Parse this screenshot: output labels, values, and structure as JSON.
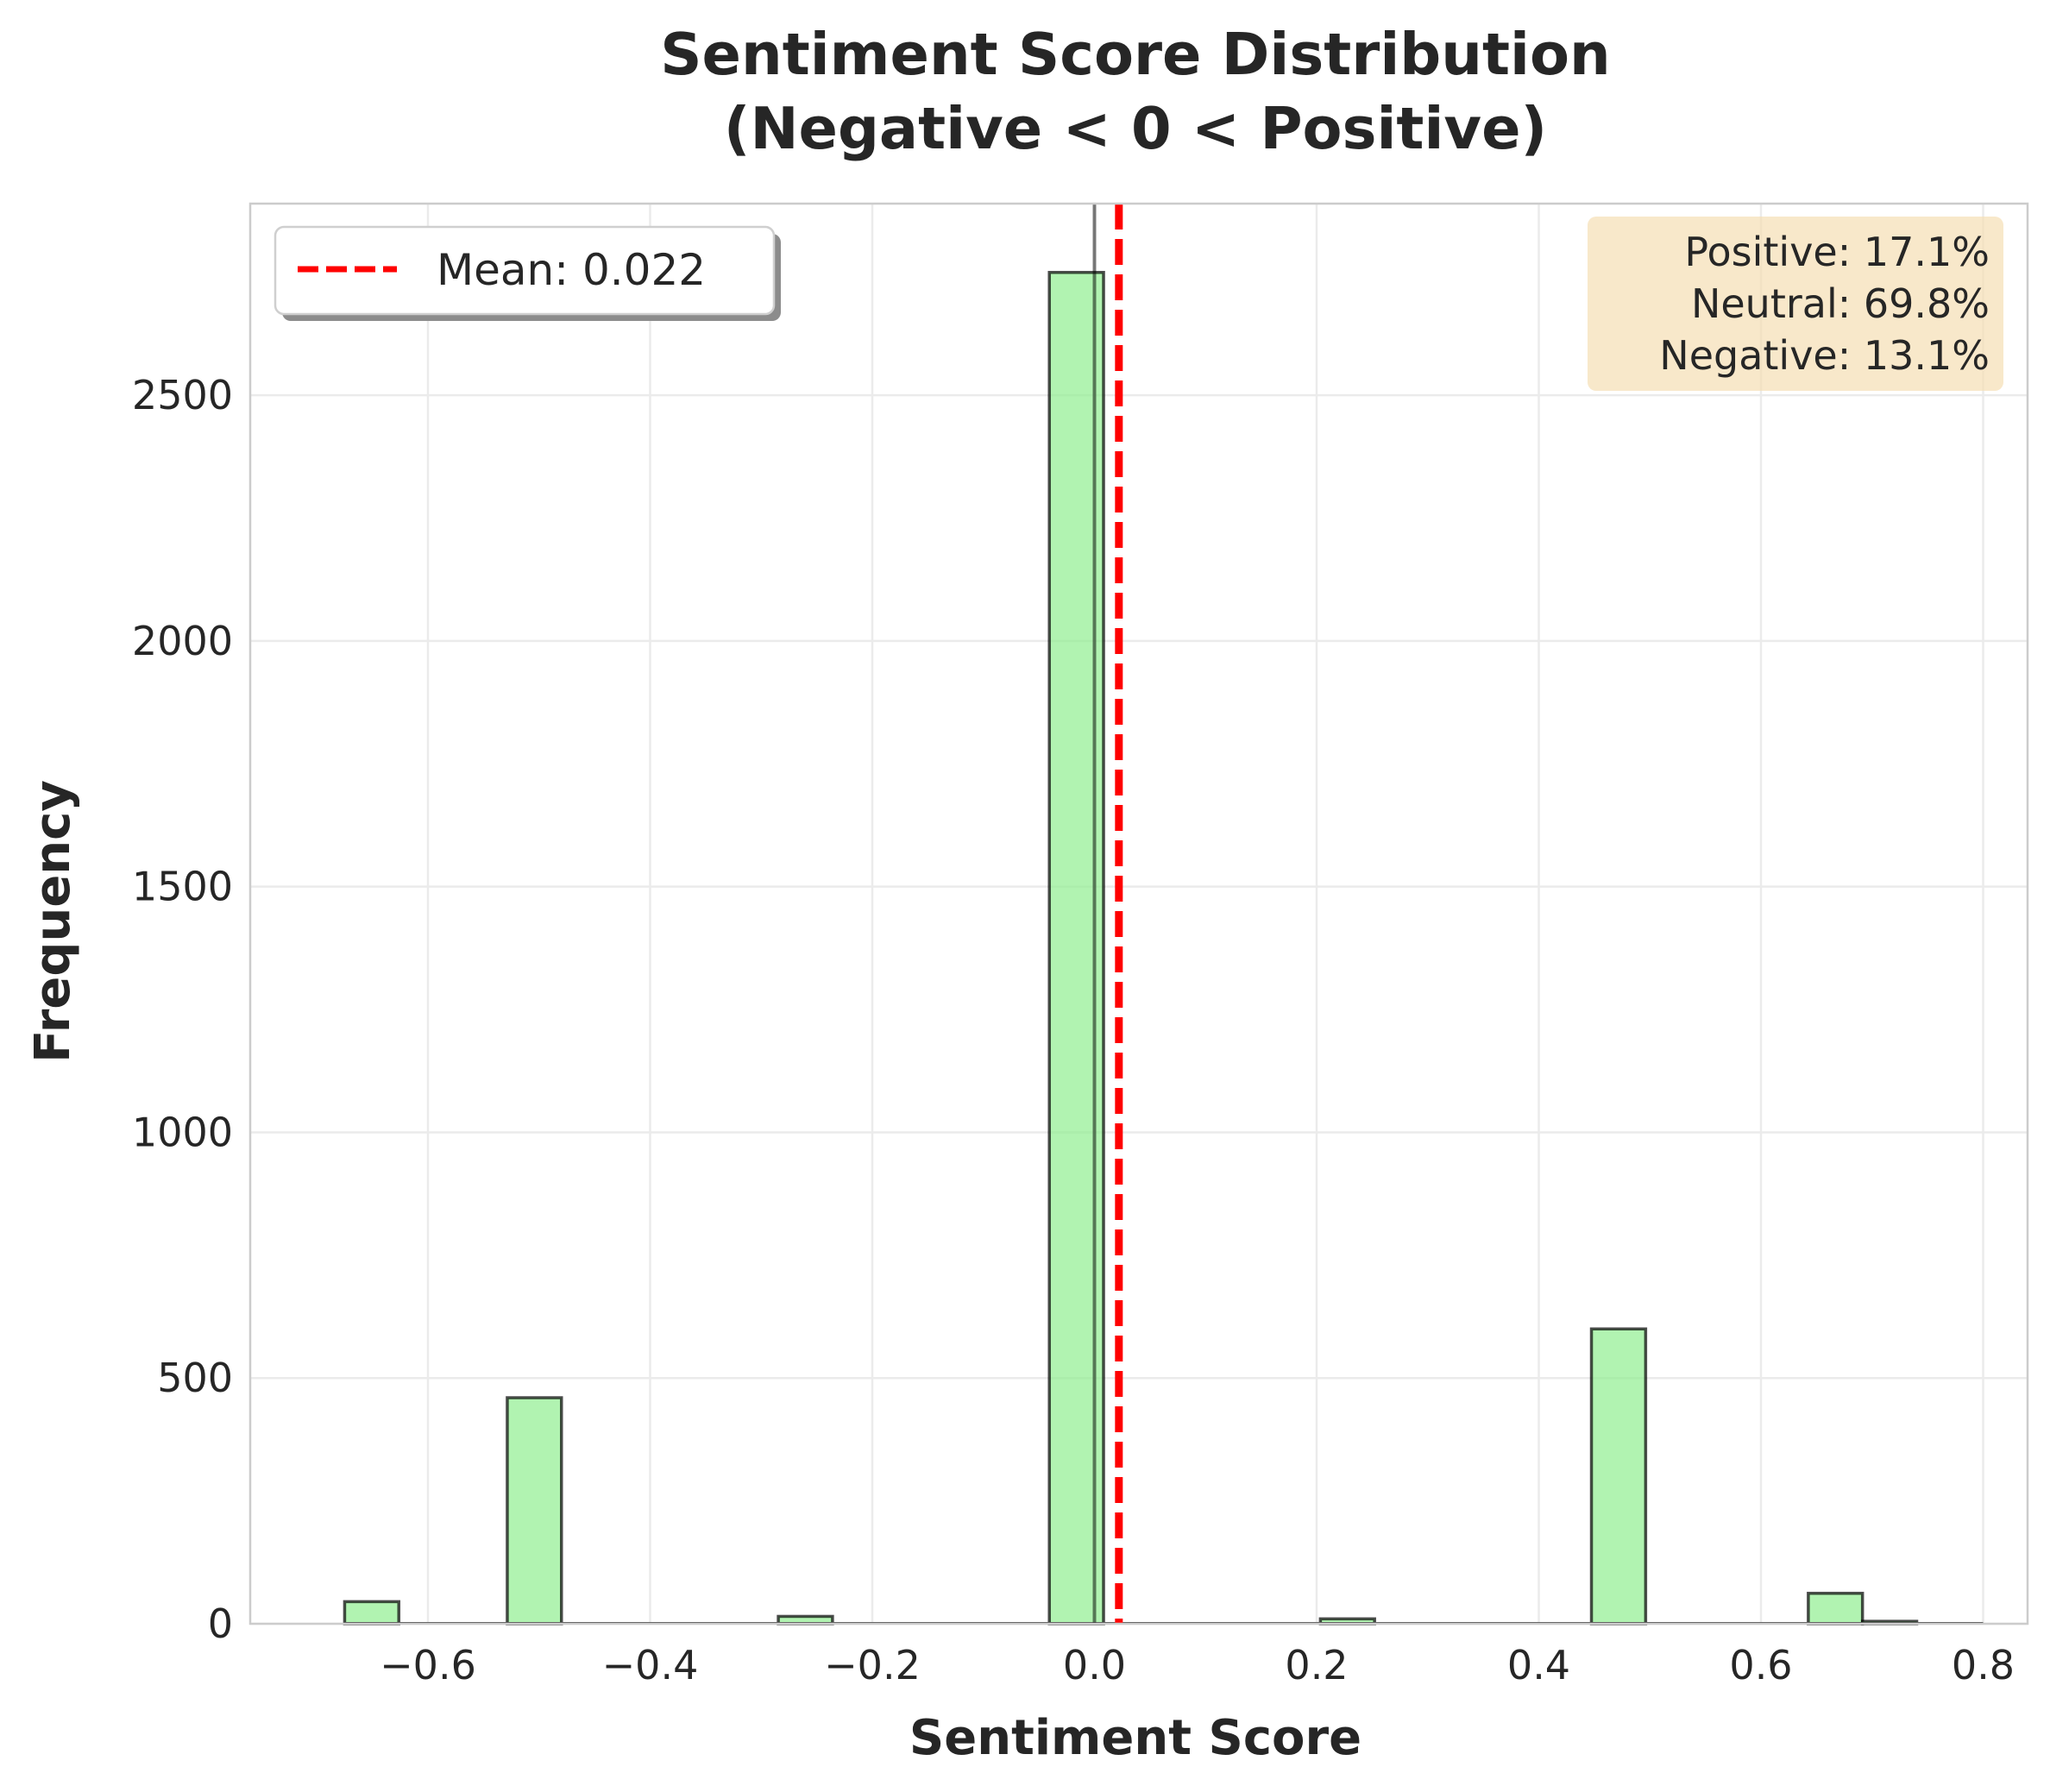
{
  "chart_data": {
    "type": "bar",
    "title": "Sentiment Score Distribution",
    "subtitle": "(Negative < 0 < Positive)",
    "xlabel": "Sentiment Score",
    "ylabel": "Frequency",
    "xlim": [
      -0.76,
      0.84
    ],
    "ylim": [
      0,
      2890
    ],
    "xticks": [
      -0.6,
      -0.4,
      -0.2,
      0.0,
      0.2,
      0.4,
      0.6,
      0.8
    ],
    "xtick_labels": [
      "−0.6",
      "−0.4",
      "−0.2",
      "0.0",
      "0.2",
      "0.4",
      "0.6",
      "0.8"
    ],
    "yticks": [
      0,
      500,
      1000,
      1500,
      2000,
      2500
    ],
    "ytick_labels": [
      "0",
      "500",
      "1000",
      "1500",
      "2000",
      "2500"
    ],
    "grid": true,
    "bin_width": 0.0488,
    "bins": [
      {
        "x0": -0.675,
        "count": 45
      },
      {
        "x0": -0.5286,
        "count": 460
      },
      {
        "x0": -0.2846,
        "count": 15
      },
      {
        "x0": -0.0406,
        "count": 2750
      },
      {
        "x0": 0.2034,
        "count": 10
      },
      {
        "x0": 0.4474,
        "count": 600
      },
      {
        "x0": 0.6426,
        "count": 62
      },
      {
        "x0": 0.6914,
        "count": 5
      }
    ],
    "bar_color": "#90ee90",
    "bar_edge_color": "#000000",
    "zero_line_x": 0.0,
    "mean": 0.022,
    "mean_color": "#ff0000",
    "legend": {
      "position": "top-left",
      "entries": [
        {
          "label": "Mean: 0.022",
          "style": "dashed-red"
        }
      ]
    },
    "stats_box": {
      "position": "top-right",
      "background": "#f5deb3",
      "lines": [
        "Positive: 17.1%",
        "Neutral: 69.8%",
        "Negative: 13.1%"
      ]
    }
  }
}
